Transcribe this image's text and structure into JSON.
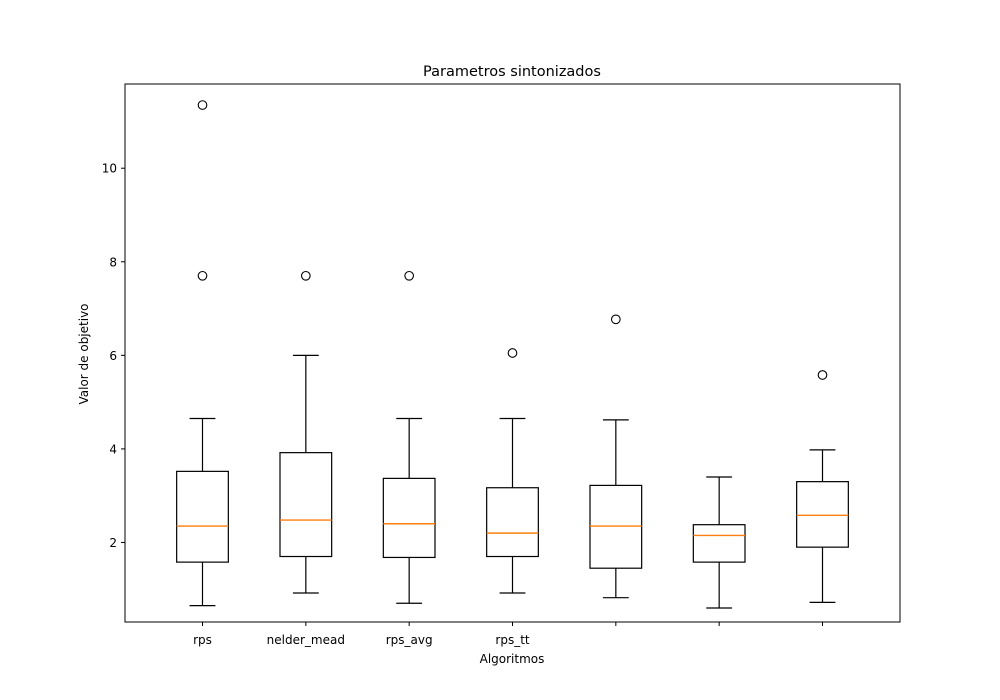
{
  "chart_data": {
    "type": "box",
    "title": "Parametros sintonizados",
    "xlabel": "Algoritmos",
    "ylabel": "Valor de objetivo",
    "ylim": [
      0.3,
      11.8
    ],
    "yticks": [
      2,
      4,
      6,
      8,
      10
    ],
    "grid": false,
    "legend": "none",
    "colors": {
      "box": "#000000",
      "median": "#ff7f0e",
      "outlier": "#000000"
    },
    "categories": [
      "rps",
      "nelder_mead",
      "rps_avg",
      "rps_tt",
      "",
      "",
      ""
    ],
    "boxes": [
      {
        "whisker_low": 0.65,
        "q1": 1.58,
        "median": 2.35,
        "q3": 3.52,
        "whisker_high": 4.65,
        "outliers": [
          7.7,
          11.35
        ]
      },
      {
        "whisker_low": 0.92,
        "q1": 1.7,
        "median": 2.48,
        "q3": 3.92,
        "whisker_high": 6.0,
        "outliers": [
          7.7
        ]
      },
      {
        "whisker_low": 0.7,
        "q1": 1.68,
        "median": 2.4,
        "q3": 3.37,
        "whisker_high": 4.65,
        "outliers": [
          7.7
        ]
      },
      {
        "whisker_low": 0.92,
        "q1": 1.7,
        "median": 2.2,
        "q3": 3.17,
        "whisker_high": 4.65,
        "outliers": [
          6.05
        ]
      },
      {
        "whisker_low": 0.82,
        "q1": 1.45,
        "median": 2.35,
        "q3": 3.22,
        "whisker_high": 4.62,
        "outliers": [
          6.77
        ]
      },
      {
        "whisker_low": 0.6,
        "q1": 1.58,
        "median": 2.15,
        "q3": 2.38,
        "whisker_high": 3.4,
        "outliers": []
      },
      {
        "whisker_low": 0.72,
        "q1": 1.9,
        "median": 2.58,
        "q3": 3.3,
        "whisker_high": 3.98,
        "outliers": [
          5.58
        ]
      }
    ]
  }
}
